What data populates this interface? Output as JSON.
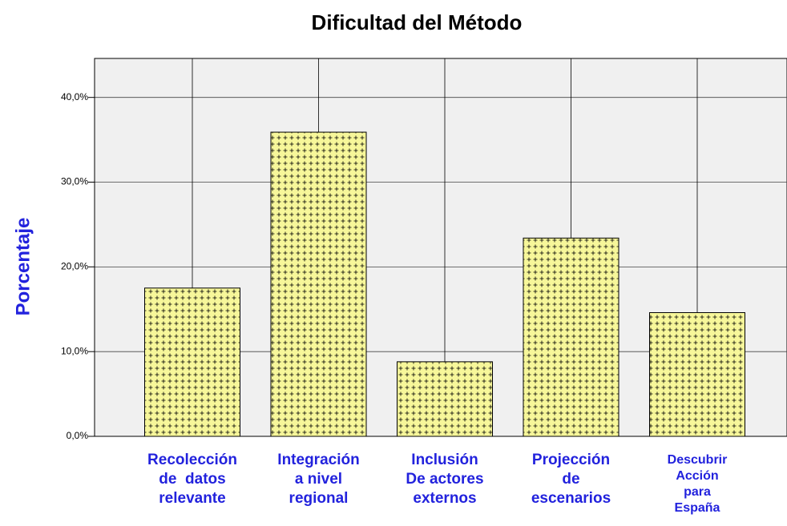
{
  "chart_data": {
    "type": "bar",
    "title": "Dificultad del Método",
    "y_label": "Porcentaje",
    "categories": [
      "Recolección\nde  datos\nrelevante",
      "Integración\na nivel\nregional",
      "Inclusión\nDe actores\nexternos",
      "Projección\nde\nescenarios",
      "Descubrir\nAcción\npara\nEspaña"
    ],
    "values": [
      17.5,
      35.9,
      8.8,
      23.4,
      14.6
    ],
    "color": "#f7f79a",
    "ylim": [
      0,
      44.6
    ],
    "yticks": [
      {
        "value": 0,
        "label": "0,0%"
      },
      {
        "value": 10,
        "label": "10,0%"
      },
      {
        "value": 20,
        "label": "20,0%"
      },
      {
        "value": 30,
        "label": "30,0%"
      },
      {
        "value": 40,
        "label": "40,0%"
      }
    ],
    "grid": true
  }
}
